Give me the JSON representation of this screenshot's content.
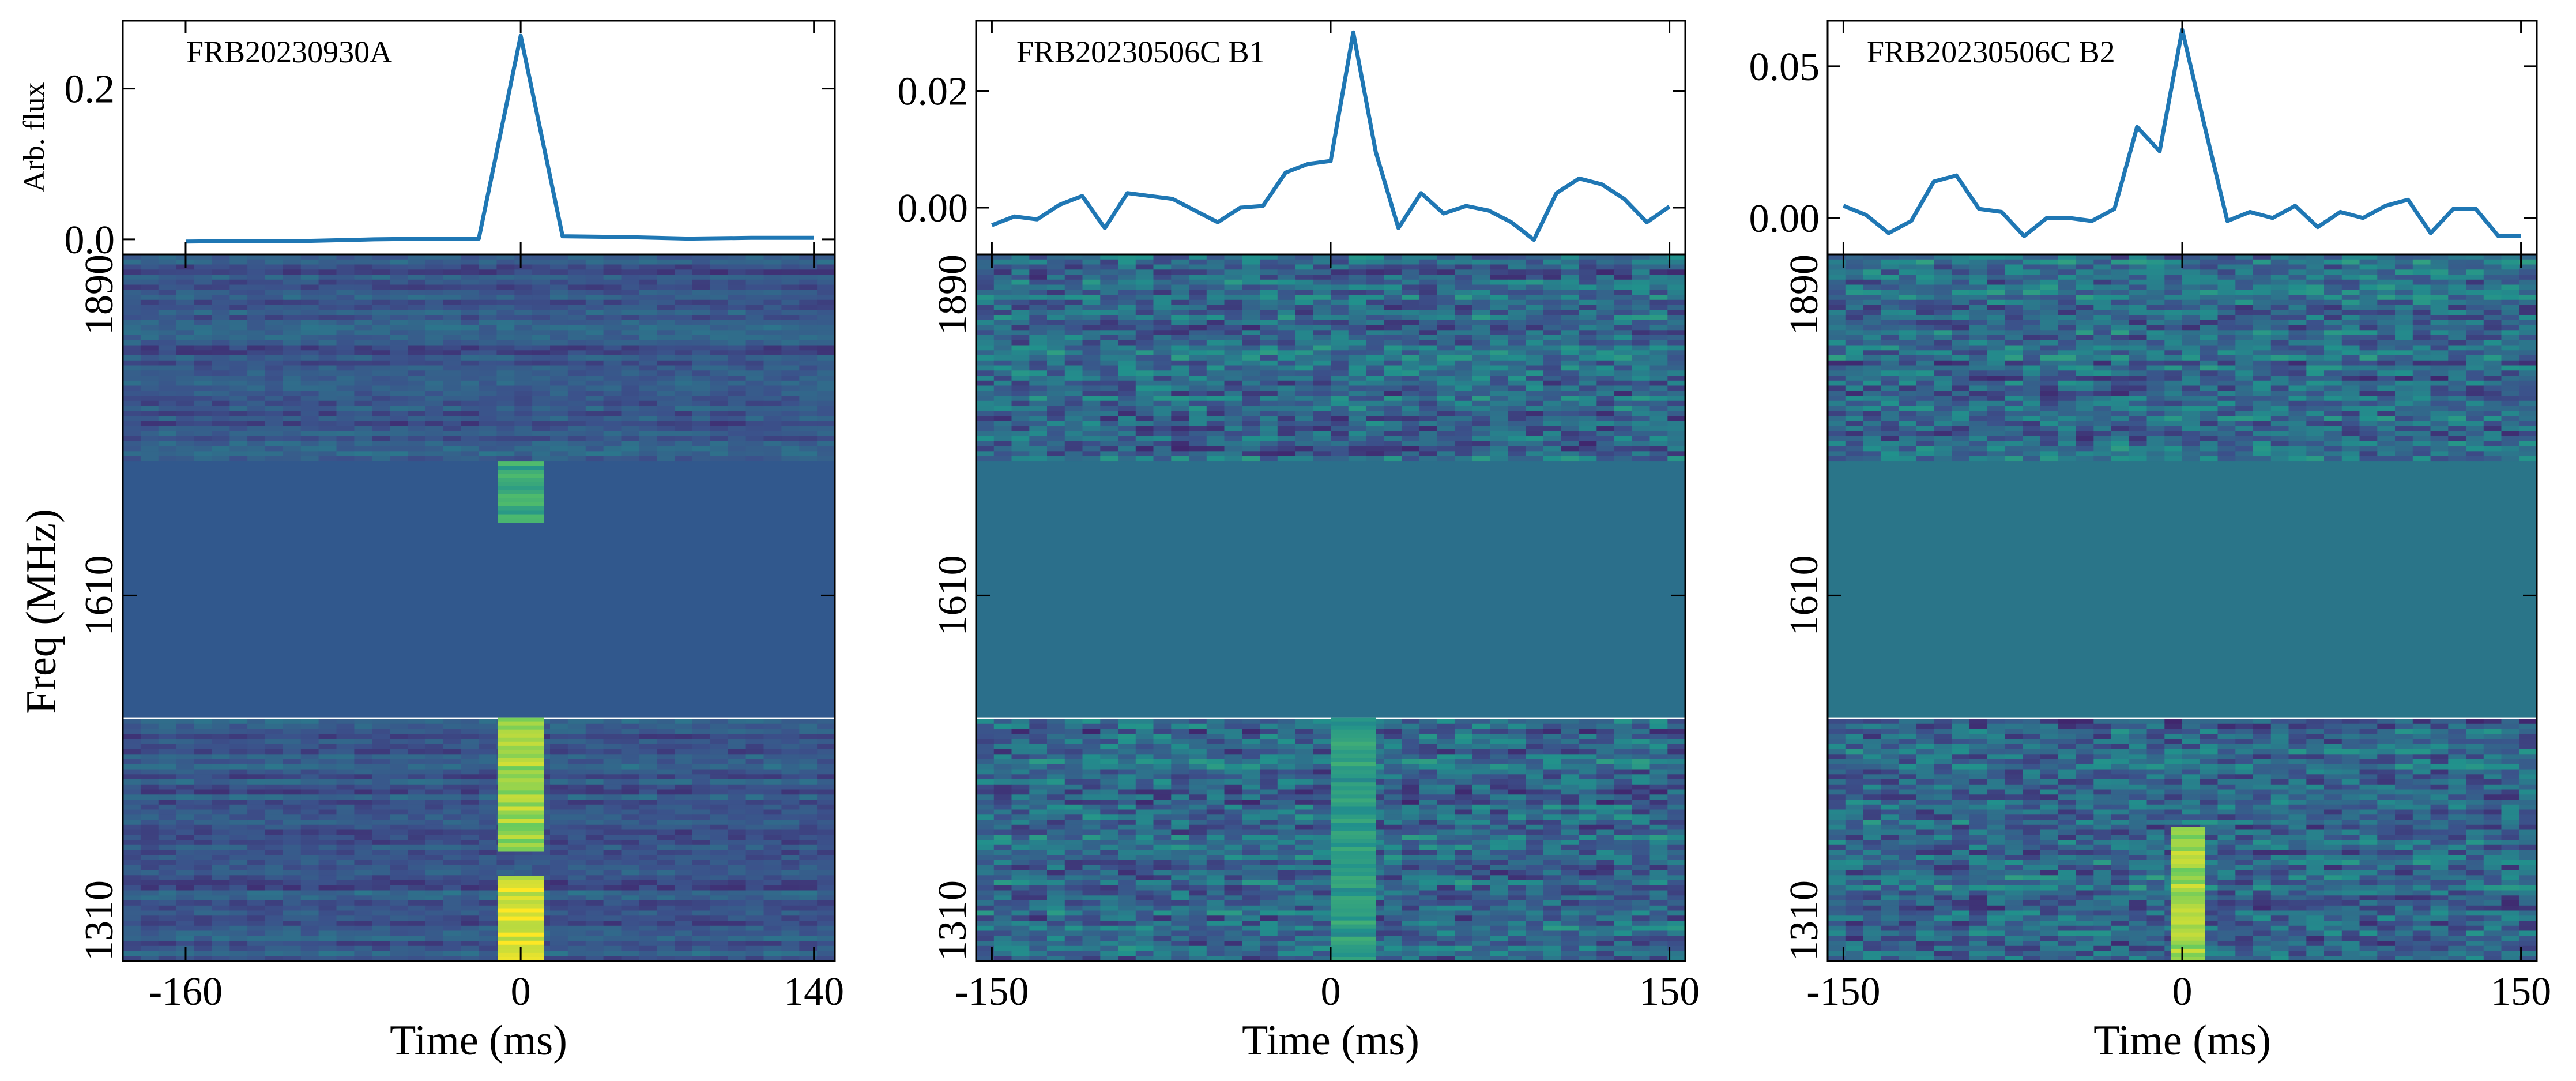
{
  "chart_data": [
    {
      "type": "line",
      "name": "FRB20230930A",
      "title": "FRB20230930A",
      "ylabel": "Arb. flux",
      "ylim": [
        -0.02,
        0.29
      ],
      "yticks": [
        0.0,
        0.2
      ],
      "yticklabels": [
        "0.0",
        "0.2"
      ],
      "xlim": [
        -190,
        150
      ],
      "x": [
        -160,
        -130,
        -100,
        -70,
        -40,
        -20,
        0,
        20,
        50,
        80,
        110,
        140
      ],
      "values": [
        -0.003,
        -0.002,
        -0.002,
        0.0,
        0.001,
        0.001,
        0.27,
        0.004,
        0.003,
        0.001,
        0.002,
        0.002
      ]
    },
    {
      "type": "line",
      "name": "FRB20230506C B1",
      "title": "FRB20230506C B1",
      "ylabel": "",
      "ylim": [
        -0.008,
        0.032
      ],
      "yticks": [
        0.0,
        0.02
      ],
      "yticklabels": [
        "0.00",
        "0.02"
      ],
      "xlim": [
        -157,
        157
      ],
      "x": [
        -150,
        -140,
        -130,
        -120,
        -110,
        -100,
        -90,
        -80,
        -70,
        -60,
        -50,
        -40,
        -30,
        -20,
        -10,
        0,
        10,
        20,
        30,
        40,
        50,
        60,
        70,
        80,
        90,
        100,
        110,
        120,
        130,
        140,
        150
      ],
      "values": [
        -0.003,
        -0.0015,
        -0.002,
        0.0005,
        0.002,
        -0.0035,
        0.0025,
        0.002,
        0.0015,
        -0.0005,
        -0.0025,
        0.0,
        0.0003,
        0.006,
        0.0075,
        0.008,
        0.03,
        0.0095,
        -0.0035,
        0.0025,
        -0.001,
        0.0003,
        -0.0005,
        -0.0025,
        -0.0055,
        0.0025,
        0.005,
        0.004,
        0.0015,
        -0.0025,
        0.0002
      ]
    },
    {
      "type": "line",
      "name": "FRB20230506C B2",
      "title": "FRB20230506C B2",
      "ylabel": "",
      "ylim": [
        -0.012,
        0.065
      ],
      "yticks": [
        0.0,
        0.05
      ],
      "yticklabels": [
        "0.00",
        "0.05"
      ],
      "xlim": [
        -157,
        157
      ],
      "x": [
        -150,
        -140,
        -130,
        -120,
        -110,
        -100,
        -90,
        -80,
        -70,
        -60,
        -50,
        -40,
        -30,
        -20,
        -10,
        0,
        10,
        20,
        30,
        40,
        50,
        60,
        70,
        80,
        90,
        100,
        110,
        120,
        130,
        140,
        150
      ],
      "values": [
        0.004,
        0.001,
        -0.005,
        -0.001,
        0.012,
        0.014,
        0.003,
        0.002,
        -0.006,
        0.0,
        0.0,
        -0.001,
        0.003,
        0.03,
        0.022,
        0.062,
        0.03,
        -0.001,
        0.002,
        0.0,
        0.004,
        -0.003,
        0.002,
        0.0,
        0.004,
        0.006,
        -0.005,
        0.003,
        0.003,
        -0.006,
        -0.006
      ]
    },
    {
      "type": "heatmap",
      "name": "FRB20230930A waterfall",
      "xlabel": "Time (ms)",
      "ylabel": "Freq (MHz)",
      "xlim": [
        -190,
        150
      ],
      "ylim": [
        1310,
        1890
      ],
      "xticks": [
        -160,
        0,
        140
      ],
      "xticklabels": [
        "-160",
        "0",
        "140"
      ],
      "yticks": [
        1310,
        1610,
        1890
      ],
      "yticklabels": [
        "1310",
        "1610",
        "1890"
      ],
      "masked_band_mhz": [
        1510,
        1720
      ],
      "signal_time_ms": [
        -11,
        11
      ],
      "signal_bands_mhz": [
        [
          1670,
          1720,
          0.6
        ],
        [
          1400,
          1510,
          0.85
        ],
        [
          1310,
          1380,
          0.95
        ]
      ],
      "colormap": [
        "#440154",
        "#3b528b",
        "#21918c",
        "#5ec962",
        "#fde725"
      ],
      "masked_color": "#31588d"
    },
    {
      "type": "heatmap",
      "name": "FRB20230506C B1 waterfall",
      "xlabel": "Time (ms)",
      "ylabel": "",
      "xlim": [
        -157,
        157
      ],
      "ylim": [
        1310,
        1890
      ],
      "xticks": [
        -150,
        0,
        150
      ],
      "xticklabels": [
        "-150",
        "0",
        "150"
      ],
      "yticks": [
        1310,
        1610,
        1890
      ],
      "yticklabels": [
        "1310",
        "1610",
        "1890"
      ],
      "masked_band_mhz": [
        1510,
        1720
      ],
      "signal_time_ms": [
        0,
        20
      ],
      "signal_bands_mhz": [
        [
          1310,
          1510,
          0.55
        ]
      ],
      "colormap": [
        "#440154",
        "#3b528b",
        "#21918c",
        "#5ec962",
        "#fde725"
      ],
      "masked_color": "#2b6f8b"
    },
    {
      "type": "heatmap",
      "name": "FRB20230506C B2 waterfall",
      "xlabel": "Time (ms)",
      "ylabel": "",
      "xlim": [
        -157,
        157
      ],
      "ylim": [
        1310,
        1890
      ],
      "xticks": [
        -150,
        0,
        150
      ],
      "xticklabels": [
        "-150",
        "0",
        "150"
      ],
      "yticks": [
        1310,
        1610,
        1890
      ],
      "yticklabels": [
        "1310",
        "1610",
        "1890"
      ],
      "masked_band_mhz": [
        1510,
        1720
      ],
      "signal_time_ms": [
        -5,
        10
      ],
      "signal_bands_mhz": [
        [
          1310,
          1420,
          0.85
        ]
      ],
      "colormap": [
        "#440154",
        "#3b528b",
        "#21918c",
        "#5ec962",
        "#fde725"
      ],
      "masked_color": "#2a7589"
    }
  ]
}
